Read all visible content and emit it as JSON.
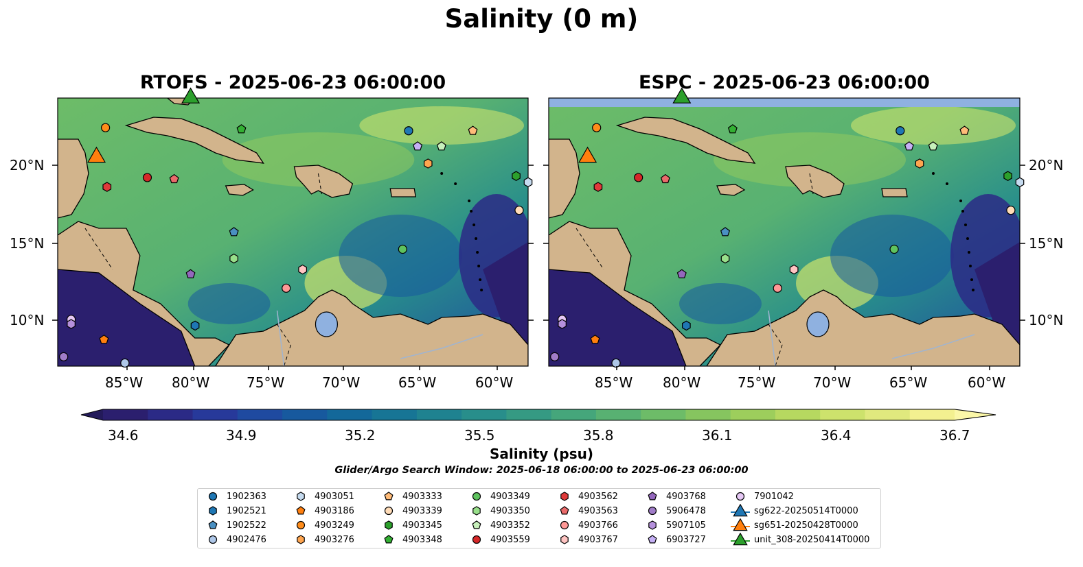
{
  "suptitle": "Salinity (0 m)",
  "panels": [
    {
      "title": "RTOFS - 2025-06-23 06:00:00"
    },
    {
      "title": "ESPC - 2025-06-23 06:00:00"
    }
  ],
  "axes": {
    "lon_labels": [
      "85°W",
      "80°W",
      "75°W",
      "70°W",
      "65°W",
      "60°W"
    ],
    "lat_labels": [
      "20°N",
      "15°N",
      "10°N"
    ]
  },
  "colorbar": {
    "label": "Salinity (psu)",
    "tick_labels": [
      "34.6",
      "34.9",
      "35.2",
      "35.5",
      "35.8",
      "36.1",
      "36.4",
      "36.7"
    ],
    "colors": [
      "#2b1f6e",
      "#2b2a86",
      "#27399a",
      "#1f4aa0",
      "#17599e",
      "#13689a",
      "#177595",
      "#1f8290",
      "#288e8b",
      "#359a83",
      "#45a67b",
      "#58b172",
      "#6dbc68",
      "#86c55f",
      "#9dce5c",
      "#b6d860",
      "#cde26c",
      "#e0e97e",
      "#f3f090"
    ]
  },
  "search_window": "Glider/Argo Search Window: 2025-06-18 06:00:00 to 2025-06-23 06:00:00",
  "legend": [
    {
      "label": "1902363",
      "shape": "circle",
      "color": "#1f77b4"
    },
    {
      "label": "1902521",
      "shape": "hexagon",
      "color": "#1f77b4"
    },
    {
      "label": "1902522",
      "shape": "pentagon",
      "color": "#4a90c2"
    },
    {
      "label": "4902476",
      "shape": "circle",
      "color": "#aec7e8"
    },
    {
      "label": "4903051",
      "shape": "hexagon",
      "color": "#c6dbef"
    },
    {
      "label": "4903186",
      "shape": "pentagon",
      "color": "#ff7f0e"
    },
    {
      "label": "4903249",
      "shape": "circle",
      "color": "#ff8c1a"
    },
    {
      "label": "4903276",
      "shape": "hexagon",
      "color": "#ffa54f"
    },
    {
      "label": "4903333",
      "shape": "pentagon",
      "color": "#ffbb78"
    },
    {
      "label": "4903339",
      "shape": "circle",
      "color": "#ffdcb8"
    },
    {
      "label": "4903345",
      "shape": "hexagon",
      "color": "#2ca02c"
    },
    {
      "label": "4903348",
      "shape": "pentagon",
      "color": "#33b033"
    },
    {
      "label": "4903349",
      "shape": "circle",
      "color": "#5ec25e"
    },
    {
      "label": "4903350",
      "shape": "hexagon",
      "color": "#98df8a"
    },
    {
      "label": "4903352",
      "shape": "pentagon",
      "color": "#c7f0bb"
    },
    {
      "label": "4903559",
      "shape": "circle",
      "color": "#d62728"
    },
    {
      "label": "4903562",
      "shape": "hexagon",
      "color": "#e03a3a"
    },
    {
      "label": "4903563",
      "shape": "pentagon",
      "color": "#ea6b6b"
    },
    {
      "label": "4903766",
      "shape": "circle",
      "color": "#ff9896"
    },
    {
      "label": "4903767",
      "shape": "hexagon",
      "color": "#ffc4c2"
    },
    {
      "label": "4903768",
      "shape": "pentagon",
      "color": "#9467bd"
    },
    {
      "label": "5906478",
      "shape": "circle",
      "color": "#a07cc8"
    },
    {
      "label": "5907105",
      "shape": "hexagon",
      "color": "#b590dc"
    },
    {
      "label": "6903727",
      "shape": "pentagon",
      "color": "#c5b0f5"
    },
    {
      "label": "7901042",
      "shape": "circle",
      "color": "#e6c8f5"
    },
    {
      "label": "sg622-20250514T0000",
      "shape": "triangle",
      "color": "#1f77b4"
    },
    {
      "label": "sg651-20250428T0000",
      "shape": "triangle",
      "color": "#ff7f0e"
    },
    {
      "label": "unit_308-20250414T0000",
      "shape": "triangle",
      "color": "#2ca02c"
    }
  ],
  "map_extent": {
    "lon_min": -89.5,
    "lon_max": -58.0,
    "lat_min": 7.0,
    "lat_max": 24.2
  },
  "observations": [
    {
      "id": "1902363",
      "shape": "circle",
      "color": "#1f77b4",
      "lon": -66.0,
      "lat": 22.1
    },
    {
      "id": "4903249",
      "shape": "circle",
      "color": "#ff8c1a",
      "lon": -86.3,
      "lat": 22.3
    },
    {
      "id": "4903348",
      "shape": "pentagon",
      "color": "#33b033",
      "lon": -77.2,
      "lat": 22.2
    },
    {
      "id": "4903333",
      "shape": "pentagon",
      "color": "#ffbb78",
      "lon": -61.7,
      "lat": 22.1
    },
    {
      "id": "6903727",
      "shape": "pentagon",
      "color": "#c5b0f5",
      "lon": -65.4,
      "lat": 21.1
    },
    {
      "id": "4903352",
      "shape": "pentagon",
      "color": "#c7f0bb",
      "lon": -63.8,
      "lat": 21.1
    },
    {
      "id": "4903276",
      "shape": "hexagon",
      "color": "#ffa54f",
      "lon": -64.7,
      "lat": 20.0
    },
    {
      "id": "4903559",
      "shape": "circle",
      "color": "#d62728",
      "lon": -83.5,
      "lat": 19.1
    },
    {
      "id": "4903563",
      "shape": "pentagon",
      "color": "#ea6b6b",
      "lon": -81.7,
      "lat": 19.0
    },
    {
      "id": "4903562",
      "shape": "hexagon",
      "color": "#e03a3a",
      "lon": -86.2,
      "lat": 18.5
    },
    {
      "id": "4903345",
      "shape": "hexagon",
      "color": "#2ca02c",
      "lon": -58.8,
      "lat": 19.2
    },
    {
      "id": "4903051",
      "shape": "hexagon",
      "color": "#c6dbef",
      "lon": -58.0,
      "lat": 18.8
    },
    {
      "id": "4903339",
      "shape": "circle",
      "color": "#ffdcb8",
      "lon": -58.6,
      "lat": 17.0
    },
    {
      "id": "1902522",
      "shape": "pentagon",
      "color": "#4a90c2",
      "lon": -77.7,
      "lat": 15.6
    },
    {
      "id": "4903349",
      "shape": "circle",
      "color": "#5ec25e",
      "lon": -66.4,
      "lat": 14.5
    },
    {
      "id": "4903350",
      "shape": "hexagon",
      "color": "#98df8a",
      "lon": -77.7,
      "lat": 13.9
    },
    {
      "id": "4903767",
      "shape": "hexagon",
      "color": "#ffc4c2",
      "lon": -73.1,
      "lat": 13.2
    },
    {
      "id": "4903768",
      "shape": "pentagon",
      "color": "#9467bd",
      "lon": -80.6,
      "lat": 12.9
    },
    {
      "id": "4903766",
      "shape": "circle",
      "color": "#ff9896",
      "lon": -74.2,
      "lat": 12.0
    },
    {
      "id": "1902521",
      "shape": "hexagon",
      "color": "#1f77b4",
      "lon": -80.3,
      "lat": 9.6
    },
    {
      "id": "7901042",
      "shape": "circle",
      "color": "#e6c8f5",
      "lon": -88.6,
      "lat": 10.0
    },
    {
      "id": "5907105",
      "shape": "hexagon",
      "color": "#b590dc",
      "lon": -88.6,
      "lat": 9.7
    },
    {
      "id": "4903186",
      "shape": "pentagon",
      "color": "#ff7f0e",
      "lon": -86.4,
      "lat": 8.7
    },
    {
      "id": "5906478",
      "shape": "circle",
      "color": "#a07cc8",
      "lon": -89.1,
      "lat": 7.6
    },
    {
      "id": "4902476",
      "shape": "circle",
      "color": "#aec7e8",
      "lon": -85.0,
      "lat": 7.2
    },
    {
      "id": "sg651-20250428T0000",
      "shape": "triangle",
      "color": "#ff7f0e",
      "lon": -86.9,
      "lat": 20.4
    },
    {
      "id": "unit_308-20250414T0000",
      "shape": "triangle",
      "color": "#2ca02c",
      "lon": -80.6,
      "lat": 24.2
    }
  ]
}
